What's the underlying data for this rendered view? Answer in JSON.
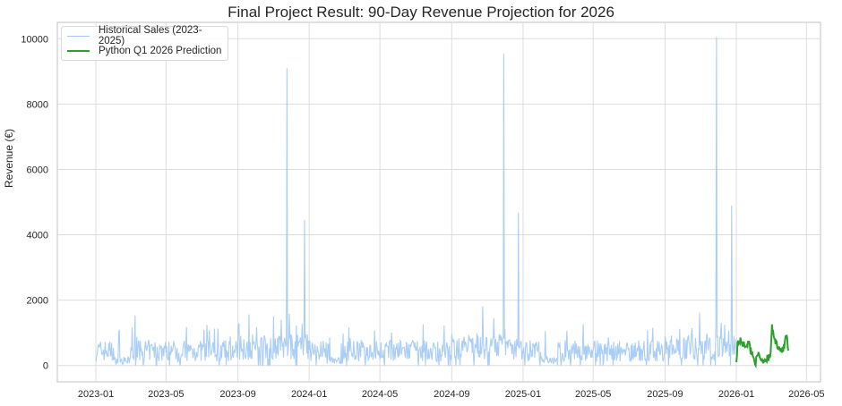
{
  "chart_data": {
    "type": "line",
    "title": "Final Project Result: 90-Day Revenue Projection for 2026",
    "xlabel": "",
    "ylabel": "Revenue (€)",
    "x_tick_labels": [
      "2023-01",
      "2023-05",
      "2023-09",
      "2024-01",
      "2024-05",
      "2024-09",
      "2025-01",
      "2025-05",
      "2025-09",
      "2026-01",
      "2026-05"
    ],
    "y_tick_labels": [
      "0",
      "2000",
      "4000",
      "6000",
      "8000",
      "10000"
    ],
    "y_ticks": [
      0,
      2000,
      4000,
      6000,
      8000,
      10000
    ],
    "ylim": [
      -500,
      10500
    ],
    "xlim": [
      "2022-10-27",
      "2026-05-25"
    ],
    "grid": true,
    "legend_position": "upper left",
    "legend": [
      "Historical Sales (2023-2025)",
      "Python Q1 2026 Prediction"
    ],
    "series": [
      {
        "name": "Historical Sales (2023-2025)",
        "color": "#a1c9f4",
        "date_range": [
          "2023-01-01",
          "2025-12-31"
        ],
        "typical_range": [
          0,
          1500
        ],
        "notes": "Daily revenue mostly 0–1000 with low periods each Feb–Mar and elevated noise Sep–Dec",
        "spikes": [
          {
            "date": "2023-11-24",
            "value": 9100
          },
          {
            "date": "2023-12-24",
            "value": 4450
          },
          {
            "date": "2024-11-29",
            "value": 9550
          },
          {
            "date": "2024-12-24",
            "value": 4680
          },
          {
            "date": "2025-11-28",
            "value": 10050
          },
          {
            "date": "2025-12-24",
            "value": 4900
          }
        ]
      },
      {
        "name": "Python Q1 2026 Prediction",
        "color": "#2ca02c",
        "date_range": [
          "2026-01-01",
          "2026-03-31"
        ],
        "approx_values": [
          {
            "date": "2026-01-01",
            "value": 100
          },
          {
            "date": "2026-01-03",
            "value": 700
          },
          {
            "date": "2026-01-08",
            "value": 750
          },
          {
            "date": "2026-01-15",
            "value": 600
          },
          {
            "date": "2026-01-22",
            "value": 700
          },
          {
            "date": "2026-01-28",
            "value": 350
          },
          {
            "date": "2026-02-03",
            "value": 100
          },
          {
            "date": "2026-02-08",
            "value": 350
          },
          {
            "date": "2026-02-14",
            "value": 150
          },
          {
            "date": "2026-02-20",
            "value": 200
          },
          {
            "date": "2026-02-28",
            "value": 250
          },
          {
            "date": "2026-03-03",
            "value": 1150
          },
          {
            "date": "2026-03-08",
            "value": 750
          },
          {
            "date": "2026-03-15",
            "value": 550
          },
          {
            "date": "2026-03-22",
            "value": 450
          },
          {
            "date": "2026-03-28",
            "value": 950
          },
          {
            "date": "2026-03-31",
            "value": 350
          }
        ]
      }
    ]
  }
}
